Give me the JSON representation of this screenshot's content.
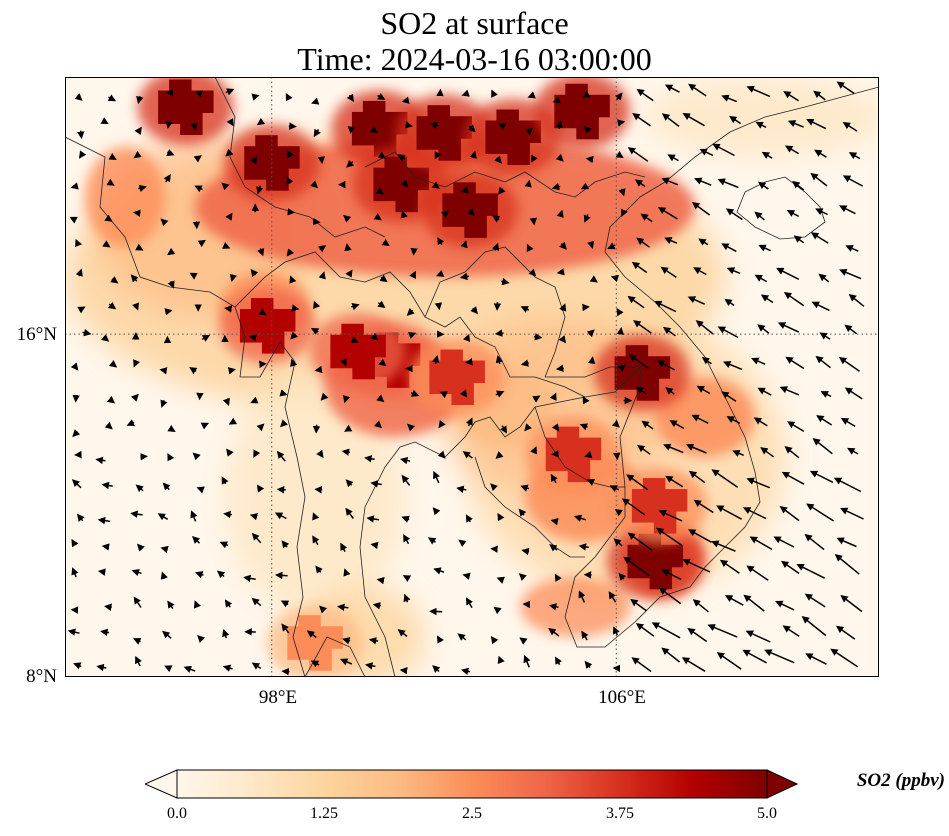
{
  "title": {
    "line1": "SO2 at surface",
    "line2": "Time: 2024-03-16 03:00:00"
  },
  "map": {
    "variable": "SO2",
    "level": "surface",
    "time": "2024-03-16 03:00:00",
    "colormap": "OrRd",
    "extent": {
      "lon_min": 93.2,
      "lon_max": 112.1,
      "lat_min": 8.0,
      "lat_max": 22.0
    },
    "gridlines_lon_deg": [
      98,
      106
    ],
    "gridlines_lat_deg": [
      16
    ],
    "lat_labels": [
      "16°N",
      "8°N"
    ],
    "lon_labels": [
      "98°E",
      "106°E"
    ],
    "overlay": "wind vectors (arrows)"
  },
  "colorbar": {
    "label": "SO2 (ppbv)",
    "ticks": [
      "0.0",
      "1.25",
      "2.5",
      "3.75",
      "5.0"
    ],
    "min": 0.0,
    "max": 5.0,
    "extend": "both",
    "colors": [
      "#fff7ec",
      "#fee8c8",
      "#fdd49e",
      "#fdbb84",
      "#fc8d59",
      "#ef6548",
      "#d7301f",
      "#b30000",
      "#7f0000"
    ]
  },
  "chart_data": {
    "type": "heatmap",
    "title": "SO2 at surface",
    "subtitle": "Time: 2024-03-16 03:00:00",
    "color_range": [
      0.0,
      5.0
    ],
    "value_unit": "ppbv",
    "hotspots": [
      {
        "lon": 96.0,
        "lat": 21.3,
        "value": 5.0
      },
      {
        "lon": 98.0,
        "lat": 20.0,
        "value": 5.0
      },
      {
        "lon": 100.5,
        "lat": 20.8,
        "value": 5.0
      },
      {
        "lon": 101.0,
        "lat": 19.5,
        "value": 5.0
      },
      {
        "lon": 102.0,
        "lat": 20.7,
        "value": 5.0
      },
      {
        "lon": 103.6,
        "lat": 20.6,
        "value": 5.0
      },
      {
        "lon": 105.2,
        "lat": 21.2,
        "value": 5.0
      },
      {
        "lon": 102.6,
        "lat": 18.9,
        "value": 5.0
      },
      {
        "lon": 100.8,
        "lat": 15.4,
        "value": 4.5
      },
      {
        "lon": 100.0,
        "lat": 15.6,
        "value": 4.5
      },
      {
        "lon": 97.9,
        "lat": 16.2,
        "value": 4.5
      },
      {
        "lon": 106.6,
        "lat": 15.1,
        "value": 5.0
      },
      {
        "lon": 106.9,
        "lat": 10.7,
        "value": 5.0
      },
      {
        "lon": 107.0,
        "lat": 12.0,
        "value": 4.0
      },
      {
        "lon": 105.0,
        "lat": 13.2,
        "value": 3.5
      },
      {
        "lon": 102.3,
        "lat": 15.0,
        "value": 4.0
      },
      {
        "lon": 99.0,
        "lat": 8.8,
        "value": 2.5
      }
    ]
  }
}
